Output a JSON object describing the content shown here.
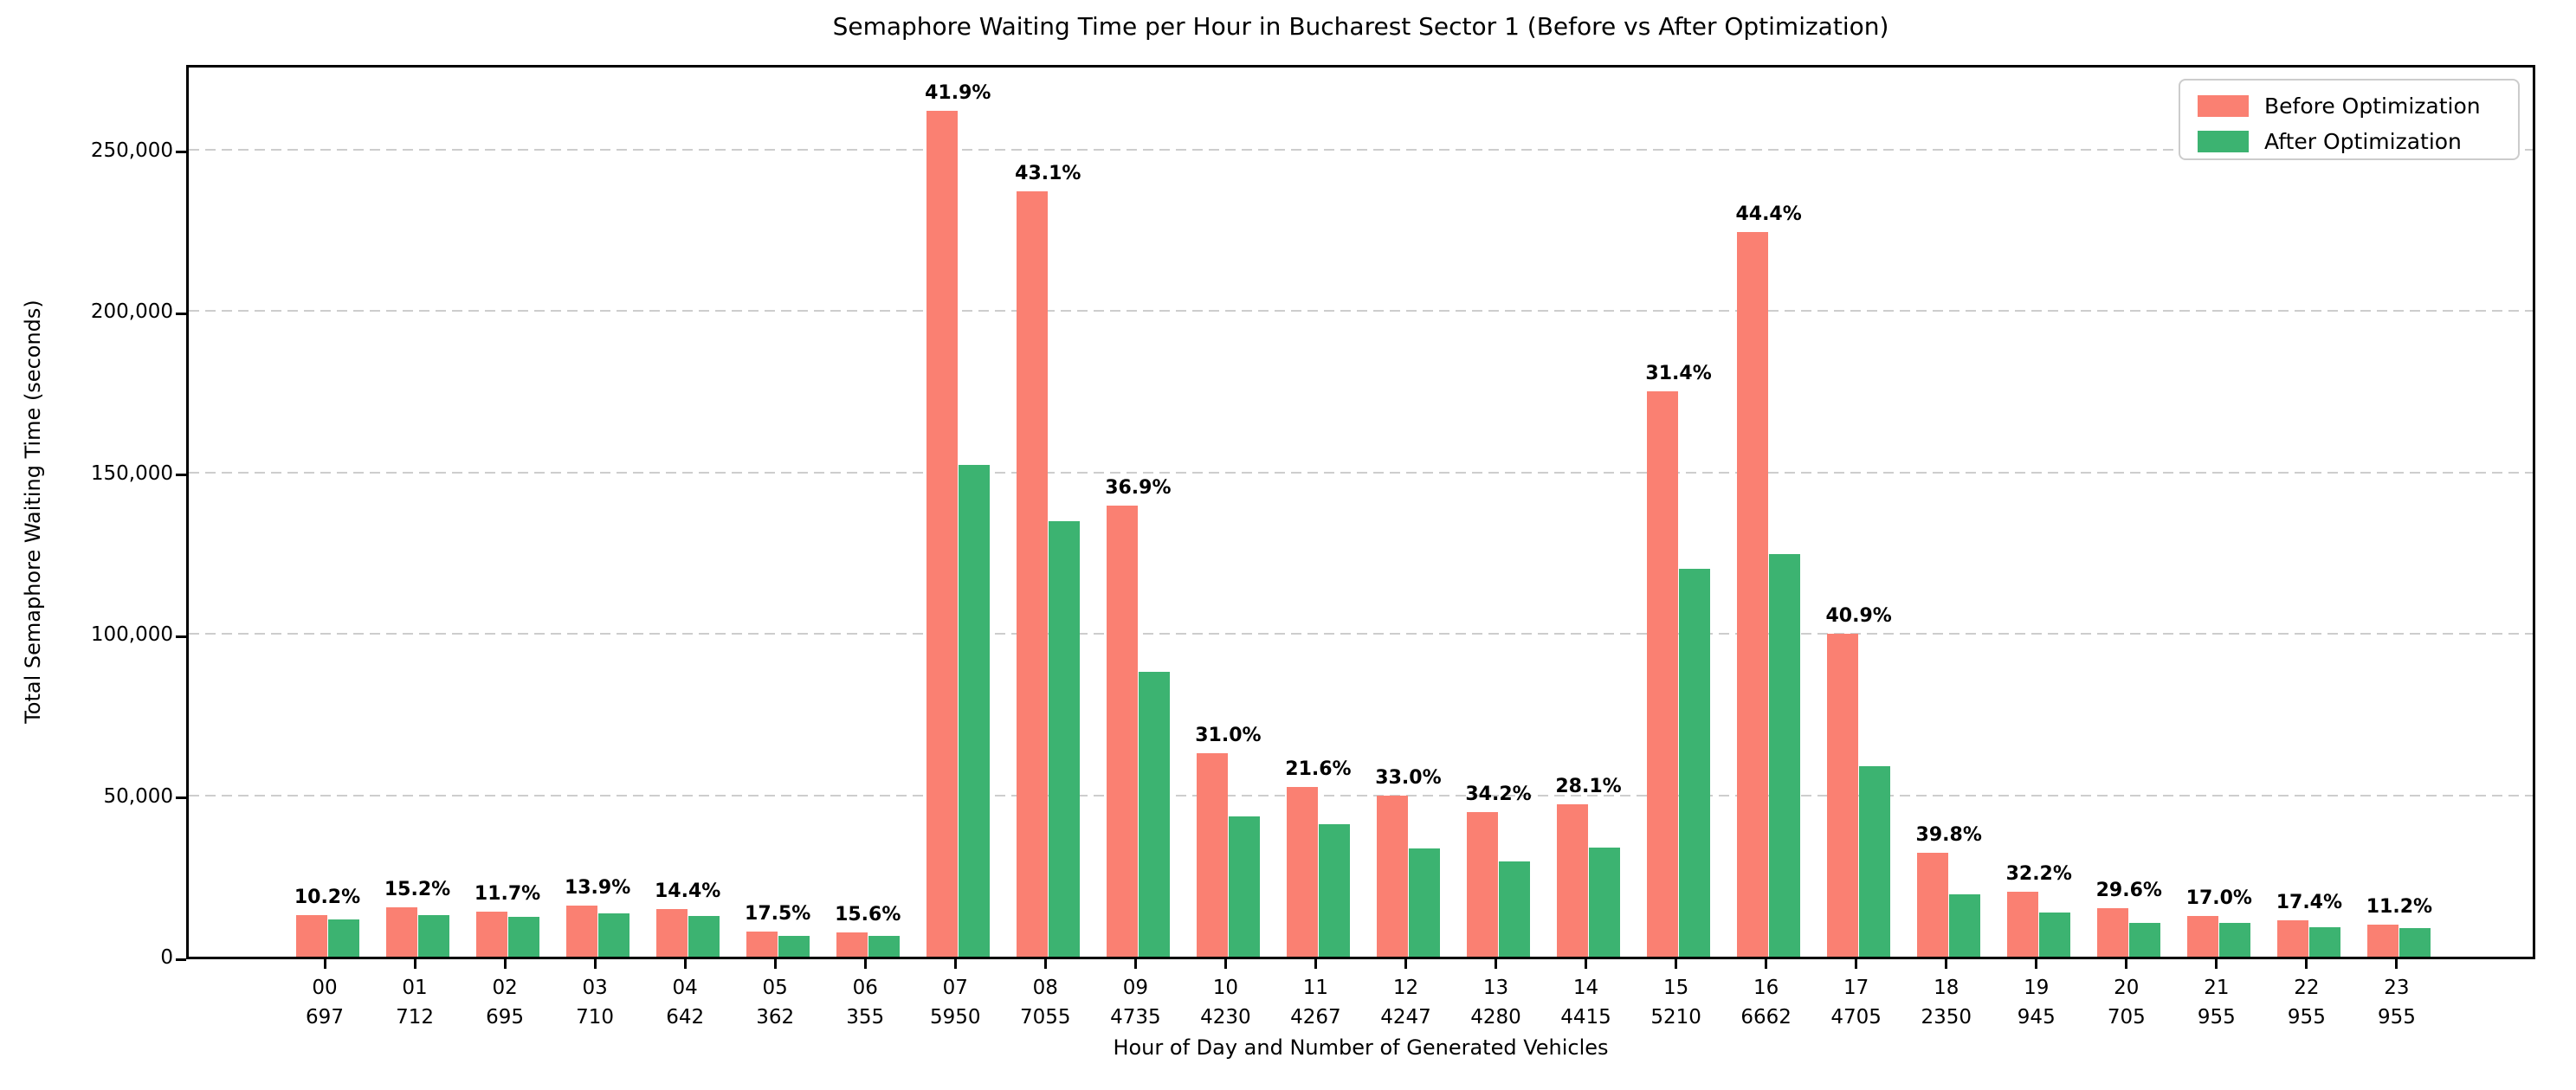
{
  "title": "Semaphore Waiting Time per Hour in Bucharest Sector 1 (Before vs After Optimization)",
  "colors": {
    "before": "#FA8072",
    "after": "#3CB371",
    "grid": "#cdcdcd",
    "axis": "#000000",
    "background": "#ffffff"
  },
  "legend": {
    "position": "upper right",
    "entries": [
      "Before Optimization",
      "After Optimization"
    ]
  },
  "chart_data": {
    "type": "bar",
    "title": "Semaphore Waiting Time per Hour in Bucharest Sector 1 (Before vs After Optimization)",
    "xlabel": "Hour of Day and Number of Generated Vehicles",
    "ylabel": "Total Semaphore Waiting Time (seconds)",
    "categories": [
      "00",
      "01",
      "02",
      "03",
      "04",
      "05",
      "06",
      "07",
      "08",
      "09",
      "10",
      "11",
      "12",
      "13",
      "14",
      "15",
      "16",
      "17",
      "18",
      "19",
      "20",
      "21",
      "22",
      "23"
    ],
    "vehicles_per_hour": [
      697,
      712,
      695,
      710,
      642,
      362,
      355,
      5950,
      7055,
      4735,
      4230,
      4267,
      4247,
      4280,
      4415,
      5210,
      6662,
      4705,
      2350,
      945,
      705,
      955,
      955,
      955
    ],
    "series": [
      {
        "name": "Before Optimization",
        "color": "#FA8072",
        "values": [
          12900,
          15200,
          13900,
          15700,
          14800,
          7800,
          7500,
          262000,
          237000,
          139600,
          63000,
          52500,
          50000,
          44700,
          47100,
          175000,
          224500,
          100000,
          32100,
          20000,
          14900,
          12500,
          11200,
          10000
        ]
      },
      {
        "name": "After Optimization",
        "color": "#3CB371",
        "values": [
          11580,
          12890,
          12270,
          13520,
          12670,
          6440,
          6330,
          152200,
          134850,
          88100,
          43470,
          41160,
          33500,
          29410,
          33870,
          120050,
          124820,
          59100,
          19320,
          13560,
          10490,
          10380,
          9250,
          8880
        ]
      }
    ],
    "bar_labels": [
      "10.2%",
      "15.2%",
      "11.7%",
      "13.9%",
      "14.4%",
      "17.5%",
      "15.6%",
      "41.9%",
      "43.1%",
      "36.9%",
      "31.0%",
      "21.6%",
      "33.0%",
      "34.2%",
      "28.1%",
      "31.4%",
      "44.4%",
      "40.9%",
      "39.8%",
      "32.2%",
      "29.6%",
      "17.0%",
      "17.4%",
      "11.2%"
    ],
    "bar_label_meaning": "percent reduction from Before to After",
    "ylim": [
      0,
      277000
    ],
    "yticks": [
      {
        "value": 0,
        "label": "0"
      },
      {
        "value": 50000,
        "label": "50,000"
      },
      {
        "value": 100000,
        "label": "100,000"
      },
      {
        "value": 150000,
        "label": "150,000"
      },
      {
        "value": 200000,
        "label": "200,000"
      },
      {
        "value": 250000,
        "label": "250,000"
      }
    ],
    "grid": "horizontal dashed",
    "legend_position": "upper right"
  }
}
